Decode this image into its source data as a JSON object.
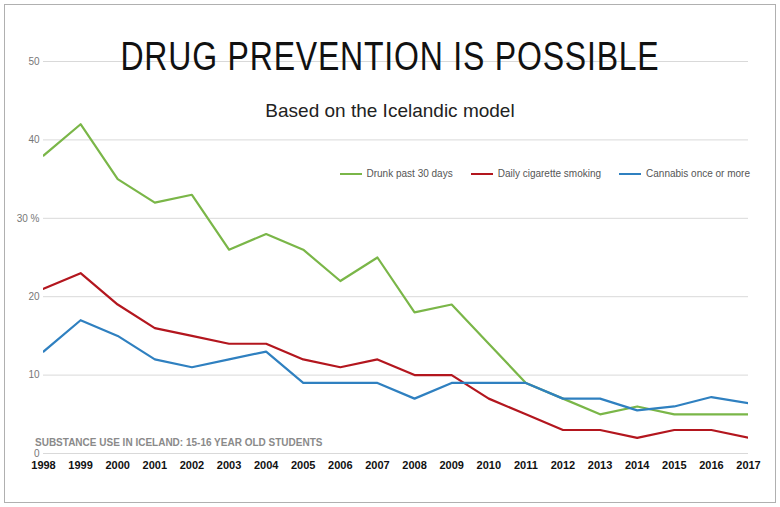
{
  "chart_data": {
    "type": "line",
    "title": "DRUG PREVENTION IS POSSIBLE",
    "subtitle": "Based on the Icelandic model",
    "annotation": "SUBSTANCE USE IN ICELAND: 15-16 YEAR OLD STUDENTS",
    "x": [
      1998,
      1999,
      2000,
      2001,
      2002,
      2003,
      2004,
      2005,
      2006,
      2007,
      2008,
      2009,
      2010,
      2011,
      2012,
      2013,
      2014,
      2015,
      2016,
      2017
    ],
    "xlim": [
      1998,
      2017
    ],
    "xticks": [
      1998,
      1999,
      2000,
      2001,
      2002,
      2003,
      2004,
      2005,
      2006,
      2007,
      2008,
      2009,
      2010,
      2011,
      2012,
      2013,
      2014,
      2015,
      2016,
      2017
    ],
    "ylim": [
      0,
      50
    ],
    "yticks": [
      0,
      10,
      20,
      {
        "value": 30,
        "label": "30 %"
      },
      40,
      50
    ],
    "grid": true,
    "legend": "upper right",
    "series": [
      {
        "name": "Drunk past 30 days",
        "color": "#7ab648",
        "values": [
          38,
          42,
          35,
          32,
          33,
          26,
          28,
          26,
          22,
          25,
          18,
          19,
          14,
          9,
          7,
          5,
          6,
          5,
          5,
          5
        ]
      },
      {
        "name": "Daily cigarette smoking",
        "color": "#b3161e",
        "values": [
          21,
          23,
          19,
          16,
          15,
          14,
          14,
          12,
          11,
          12,
          10,
          10,
          7,
          5,
          3,
          3,
          2,
          3,
          3,
          2
        ]
      },
      {
        "name": "Cannabis once or more",
        "color": "#2f80c0",
        "values": [
          13,
          17,
          15,
          12,
          11,
          12,
          13,
          9,
          9,
          9,
          7,
          9,
          9,
          9,
          7,
          7,
          5.5,
          6,
          7.2,
          6.4
        ]
      }
    ]
  }
}
